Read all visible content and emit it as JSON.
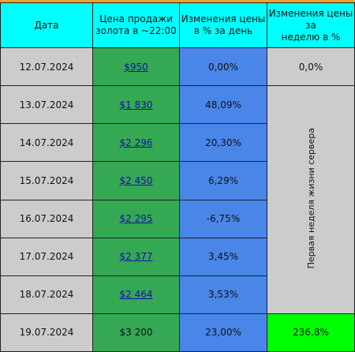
{
  "header": {
    "columns": [
      {
        "lines": [
          "Дата"
        ]
      },
      {
        "lines": [
          "Цена продажи",
          "золота в ~22:00"
        ]
      },
      {
        "lines": [
          "Изменения цены",
          "в % за день"
        ]
      },
      {
        "lines": [
          "Изменения цены",
          "за",
          "неделю в %"
        ]
      }
    ]
  },
  "rows": [
    {
      "date": "12.07.2024",
      "price": "$950",
      "price_is_link": true,
      "day_change": "0,00%",
      "week_change": "0,0%"
    },
    {
      "date": "13.07.2024",
      "price": "$1 830",
      "price_is_link": true,
      "day_change": "48,09%"
    },
    {
      "date": "14.07.2024",
      "price": "$2 296",
      "price_is_link": true,
      "day_change": "20,30%"
    },
    {
      "date": "15.07.2024",
      "price": "$2 450",
      "price_is_link": true,
      "day_change": "6,29%"
    },
    {
      "date": "16.07.2024",
      "price": "$2 295",
      "price_is_link": true,
      "day_change": "-6,75%"
    },
    {
      "date": "17.07.2024",
      "price": "$2 377",
      "price_is_link": true,
      "day_change": "3,45%"
    },
    {
      "date": "18.07.2024",
      "price": "$2 464",
      "price_is_link": true,
      "day_change": "3,53%"
    },
    {
      "date": "19.07.2024",
      "price": "$3 200",
      "price_is_link": false,
      "day_change": "23,00%",
      "week_change": "236,8%"
    }
  ],
  "merged_note": "Первая неделя жизни сервера"
}
